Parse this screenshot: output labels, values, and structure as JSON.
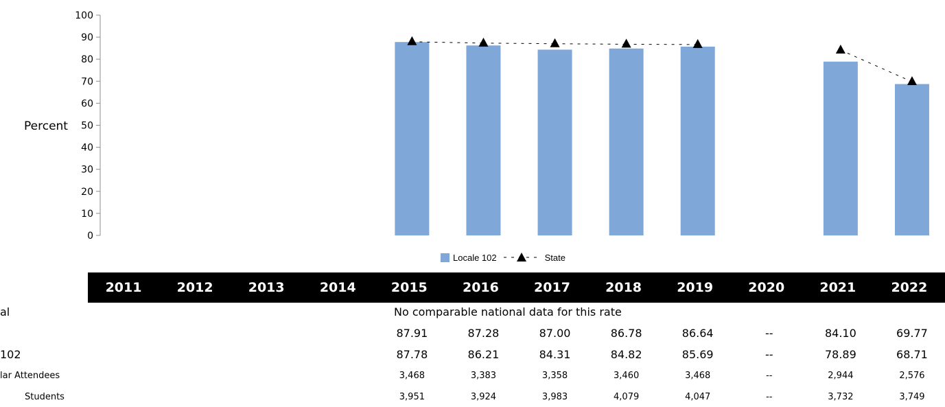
{
  "chart_data": {
    "type": "bar",
    "categories": [
      "2011",
      "2012",
      "2013",
      "2014",
      "2015",
      "2016",
      "2017",
      "2018",
      "2019",
      "2020",
      "2021",
      "2022"
    ],
    "series": [
      {
        "name": "Locale 102",
        "type": "bar",
        "values": [
          null,
          null,
          null,
          null,
          87.78,
          86.21,
          84.31,
          84.82,
          85.69,
          null,
          78.89,
          68.71
        ]
      },
      {
        "name": "State",
        "type": "line",
        "values": [
          null,
          null,
          null,
          null,
          87.91,
          87.28,
          87.0,
          86.78,
          86.64,
          null,
          84.1,
          69.77
        ]
      }
    ],
    "ylabel": "Percent",
    "ylim": [
      0,
      100
    ],
    "yticks": [
      0,
      10,
      20,
      30,
      40,
      50,
      60,
      70,
      80,
      90,
      100
    ],
    "legend_position": "bottom-center",
    "colors": {
      "bar": "#7fa7d8",
      "line": "#000000"
    }
  },
  "table": {
    "rows": [
      {
        "label": "al",
        "note": "No comparable national data for this rate"
      },
      {
        "label": "",
        "cells": [
          "",
          "",
          "",
          "",
          "87.91",
          "87.28",
          "87.00",
          "86.78",
          "86.64",
          "--",
          "84.10",
          "69.77"
        ]
      },
      {
        "label": "102",
        "cells": [
          "",
          "",
          "",
          "",
          "87.78",
          "86.21",
          "84.31",
          "84.82",
          "85.69",
          "--",
          "78.89",
          "68.71"
        ]
      },
      {
        "label": "lar Attendees",
        "cells": [
          "",
          "",
          "",
          "",
          "3,468",
          "3,383",
          "3,358",
          "3,460",
          "3,468",
          "--",
          "2,944",
          "2,576"
        ]
      },
      {
        "label": "Students",
        "cells": [
          "",
          "",
          "",
          "",
          "3,951",
          "3,924",
          "3,983",
          "4,079",
          "4,047",
          "--",
          "3,732",
          "3,749"
        ]
      }
    ]
  }
}
